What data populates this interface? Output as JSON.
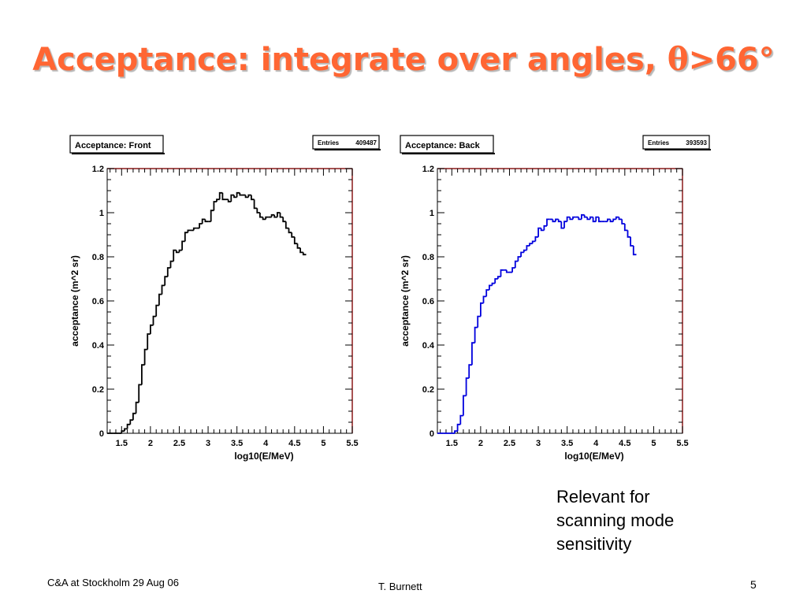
{
  "slide": {
    "title_main": "Acceptance: integrate over angles, ",
    "title_symbol": "θ",
    "title_suffix": ">66°",
    "note_lines": [
      "Relevant for",
      "scanning mode",
      "sensitivity"
    ],
    "footer_left": "C&A at Stockholm  29 Aug 06",
    "footer_center": "T. Burnett",
    "footer_page": "5"
  },
  "chart_data": [
    {
      "type": "line",
      "title": "Acceptance: Front",
      "stats_label": "Entries",
      "stats_value": "409487",
      "xlabel": "log10(E/MeV)",
      "ylabel": "acceptance (m^2 sr)",
      "xlim": [
        1.25,
        5.5
      ],
      "ylim": [
        0,
        1.2
      ],
      "xticks": [
        "1.5",
        "2",
        "2.5",
        "3",
        "3.5",
        "4",
        "4.5",
        "5",
        "5.5"
      ],
      "yticks": [
        "0",
        "0.2",
        "0.4",
        "0.6",
        "0.8",
        "1",
        "1.2"
      ],
      "line_color": "#000000",
      "bin_width": 0.05,
      "bins_start": 1.25,
      "values": [
        0,
        0,
        0,
        0,
        0,
        0.01,
        0.02,
        0.04,
        0.06,
        0.09,
        0.14,
        0.22,
        0.31,
        0.38,
        0.45,
        0.49,
        0.53,
        0.58,
        0.63,
        0.67,
        0.71,
        0.75,
        0.78,
        0.83,
        0.82,
        0.83,
        0.87,
        0.91,
        0.92,
        0.92,
        0.93,
        0.93,
        0.95,
        0.97,
        0.96,
        0.96,
        1.01,
        1.05,
        1.06,
        1.09,
        1.06,
        1.06,
        1.05,
        1.08,
        1.07,
        1.09,
        1.08,
        1.08,
        1.07,
        1.08,
        1.06,
        1.02,
        1.0,
        0.98,
        0.97,
        0.98,
        0.98,
        0.99,
        0.98,
        1.0,
        0.98,
        0.96,
        0.93,
        0.91,
        0.89,
        0.86,
        0.84,
        0.82,
        0.81
      ]
    },
    {
      "type": "line",
      "title": "Acceptance: Back",
      "stats_label": "Entries",
      "stats_value": "393593",
      "xlabel": "log10(E/MeV)",
      "ylabel": "acceptance (m^2 sr)",
      "xlim": [
        1.25,
        5.5
      ],
      "ylim": [
        0,
        1.2
      ],
      "xticks": [
        "1.5",
        "2",
        "2.5",
        "3",
        "3.5",
        "4",
        "4.5",
        "5",
        "5.5"
      ],
      "yticks": [
        "0",
        "0.2",
        "0.4",
        "0.6",
        "0.8",
        "1",
        "1.2"
      ],
      "line_color": "#0000dd",
      "bin_width": 0.05,
      "bins_start": 1.25,
      "values": [
        0,
        0,
        0,
        0,
        0,
        0,
        0.01,
        0.04,
        0.08,
        0.17,
        0.25,
        0.31,
        0.41,
        0.48,
        0.53,
        0.59,
        0.62,
        0.65,
        0.67,
        0.68,
        0.7,
        0.71,
        0.74,
        0.74,
        0.73,
        0.73,
        0.75,
        0.78,
        0.8,
        0.82,
        0.83,
        0.85,
        0.86,
        0.87,
        0.89,
        0.93,
        0.92,
        0.94,
        0.97,
        0.97,
        0.96,
        0.97,
        0.96,
        0.93,
        0.96,
        0.98,
        0.97,
        0.98,
        0.98,
        0.97,
        0.99,
        0.98,
        0.97,
        0.98,
        0.96,
        0.98,
        0.96,
        0.96,
        0.96,
        0.97,
        0.96,
        0.97,
        0.98,
        0.97,
        0.95,
        0.92,
        0.89,
        0.85,
        0.81
      ]
    }
  ]
}
